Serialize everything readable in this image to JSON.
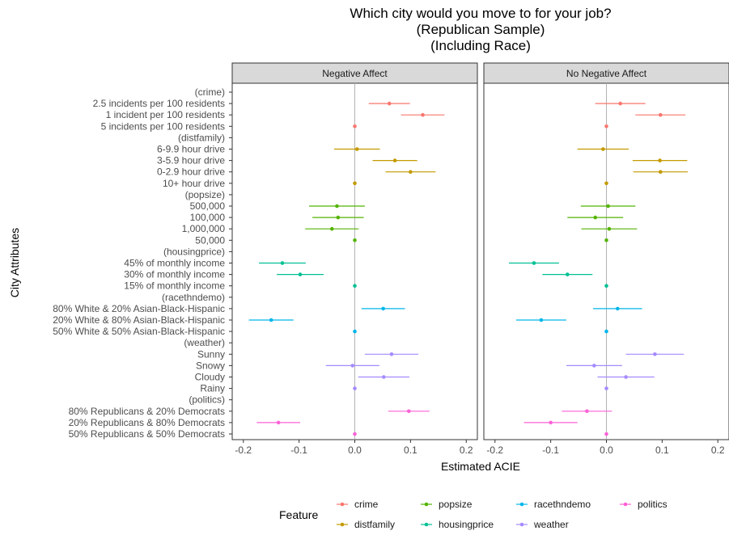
{
  "chart_data": {
    "type": "scatter",
    "title_lines": [
      "Which city would you move to for your job?",
      "(Republican Sample)",
      "(Including Race)"
    ],
    "xlabel": "Estimated ACIE",
    "ylabel": "City Attributes",
    "xlim": [
      -0.22,
      0.22
    ],
    "xticks": [
      -0.2,
      -0.1,
      0.0,
      0.1,
      0.2
    ],
    "xtick_labels": [
      "-0.2",
      "-0.1",
      "0.0",
      "0.1",
      "0.2"
    ],
    "reference_line_x": 0,
    "panels": [
      {
        "name": "Negative Affect"
      },
      {
        "name": "No Negative Affect"
      }
    ],
    "rows": [
      {
        "label": "(crime)",
        "feature": null
      },
      {
        "label": "2.5 incidents per 100 residents",
        "feature": "crime",
        "est": [
          0.062,
          0.025
        ],
        "lo": [
          0.025,
          -0.02
        ],
        "hi": [
          0.099,
          0.07
        ]
      },
      {
        "label": "1 incident per 100 residents",
        "feature": "crime",
        "est": [
          0.122,
          0.097
        ],
        "lo": [
          0.083,
          0.052
        ],
        "hi": [
          0.161,
          0.142
        ]
      },
      {
        "label": "5 incidents per 100 residents",
        "feature": "crime",
        "est": [
          0.0,
          0.0
        ],
        "lo": [
          0.0,
          0.0
        ],
        "hi": [
          0.0,
          0.0
        ]
      },
      {
        "label": "(distfamily)",
        "feature": null
      },
      {
        "label": "6-9.9 hour drive",
        "feature": "distfamily",
        "est": [
          0.004,
          -0.006
        ],
        "lo": [
          -0.037,
          -0.052
        ],
        "hi": [
          0.045,
          0.04
        ]
      },
      {
        "label": "3-5.9 hour drive",
        "feature": "distfamily",
        "est": [
          0.072,
          0.096
        ],
        "lo": [
          0.032,
          0.047
        ],
        "hi": [
          0.112,
          0.145
        ]
      },
      {
        "label": "0-2.9 hour drive",
        "feature": "distfamily",
        "est": [
          0.1,
          0.097
        ],
        "lo": [
          0.055,
          0.048
        ],
        "hi": [
          0.145,
          0.146
        ]
      },
      {
        "label": "10+ hour drive",
        "feature": "distfamily",
        "est": [
          0.0,
          0.0
        ],
        "lo": [
          0.0,
          0.0
        ],
        "hi": [
          0.0,
          0.0
        ]
      },
      {
        "label": "(popsize)",
        "feature": null
      },
      {
        "label": "500,000",
        "feature": "popsize",
        "est": [
          -0.032,
          0.003
        ],
        "lo": [
          -0.082,
          -0.046
        ],
        "hi": [
          0.018,
          0.052
        ]
      },
      {
        "label": "100,000",
        "feature": "popsize",
        "est": [
          -0.03,
          -0.02
        ],
        "lo": [
          -0.076,
          -0.07
        ],
        "hi": [
          0.016,
          0.03
        ]
      },
      {
        "label": "1,000,000",
        "feature": "popsize",
        "est": [
          -0.041,
          0.005
        ],
        "lo": [
          -0.089,
          -0.045
        ],
        "hi": [
          0.007,
          0.055
        ]
      },
      {
        "label": "50,000",
        "feature": "popsize",
        "est": [
          0.0,
          0.0
        ],
        "lo": [
          0.0,
          0.0
        ],
        "hi": [
          0.0,
          0.0
        ]
      },
      {
        "label": "(housingprice)",
        "feature": null
      },
      {
        "label": "45% of monthly income",
        "feature": "housingprice",
        "est": [
          -0.13,
          -0.13
        ],
        "lo": [
          -0.172,
          -0.175
        ],
        "hi": [
          -0.088,
          -0.085
        ]
      },
      {
        "label": "30% of monthly income",
        "feature": "housingprice",
        "est": [
          -0.098,
          -0.07
        ],
        "lo": [
          -0.14,
          -0.115
        ],
        "hi": [
          -0.056,
          -0.025
        ]
      },
      {
        "label": "15% of monthly income",
        "feature": "housingprice",
        "est": [
          0.0,
          0.0
        ],
        "lo": [
          0.0,
          0.0
        ],
        "hi": [
          0.0,
          0.0
        ]
      },
      {
        "label": "(racethndemo)",
        "feature": null
      },
      {
        "label": "80% White & 20% Asian-Black-Hispanic",
        "feature": "racethndemo",
        "est": [
          0.051,
          0.02
        ],
        "lo": [
          0.012,
          -0.024
        ],
        "hi": [
          0.09,
          0.064
        ]
      },
      {
        "label": "20% White & 80% Asian-Black-Hispanic",
        "feature": "racethndemo",
        "est": [
          -0.15,
          -0.117
        ],
        "lo": [
          -0.19,
          -0.162
        ],
        "hi": [
          -0.11,
          -0.072
        ]
      },
      {
        "label": "50% White & 50% Asian-Black-Hispanic",
        "feature": "racethndemo",
        "est": [
          0.0,
          0.0
        ],
        "lo": [
          0.0,
          0.0
        ],
        "hi": [
          0.0,
          0.0
        ]
      },
      {
        "label": "(weather)",
        "feature": null
      },
      {
        "label": "Sunny",
        "feature": "weather",
        "est": [
          0.066,
          0.087
        ],
        "lo": [
          0.018,
          0.035
        ],
        "hi": [
          0.114,
          0.139
        ]
      },
      {
        "label": "Snowy",
        "feature": "weather",
        "est": [
          -0.004,
          -0.022
        ],
        "lo": [
          -0.052,
          -0.072
        ],
        "hi": [
          0.044,
          0.028
        ]
      },
      {
        "label": "Cloudy",
        "feature": "weather",
        "est": [
          0.052,
          0.035
        ],
        "lo": [
          0.006,
          -0.016
        ],
        "hi": [
          0.098,
          0.086
        ]
      },
      {
        "label": "Rainy",
        "feature": "weather",
        "est": [
          0.0,
          0.0
        ],
        "lo": [
          0.0,
          0.0
        ],
        "hi": [
          0.0,
          0.0
        ]
      },
      {
        "label": "(politics)",
        "feature": null
      },
      {
        "label": "80% Republicans & 20% Democrats",
        "feature": "politics",
        "est": [
          0.097,
          -0.035
        ],
        "lo": [
          0.06,
          -0.08
        ],
        "hi": [
          0.134,
          0.01
        ]
      },
      {
        "label": "20% Republicans & 80% Democrats",
        "feature": "politics",
        "est": [
          -0.137,
          -0.1
        ],
        "lo": [
          -0.176,
          -0.148
        ],
        "hi": [
          -0.098,
          -0.052
        ]
      },
      {
        "label": "50% Republicans & 50% Democrats",
        "feature": "politics",
        "est": [
          0.0,
          0.0
        ],
        "lo": [
          0.0,
          0.0
        ],
        "hi": [
          0.0,
          0.0
        ]
      }
    ],
    "legend": {
      "title": "Feature",
      "position": "bottom",
      "entries": [
        {
          "name": "crime",
          "color": "#F8766D"
        },
        {
          "name": "distfamily",
          "color": "#C49A00"
        },
        {
          "name": "popsize",
          "color": "#53B400"
        },
        {
          "name": "housingprice",
          "color": "#00C094"
        },
        {
          "name": "racethndemo",
          "color": "#00B6EB"
        },
        {
          "name": "weather",
          "color": "#A58AFF"
        },
        {
          "name": "politics",
          "color": "#FB61D7"
        }
      ]
    },
    "grid": false
  }
}
